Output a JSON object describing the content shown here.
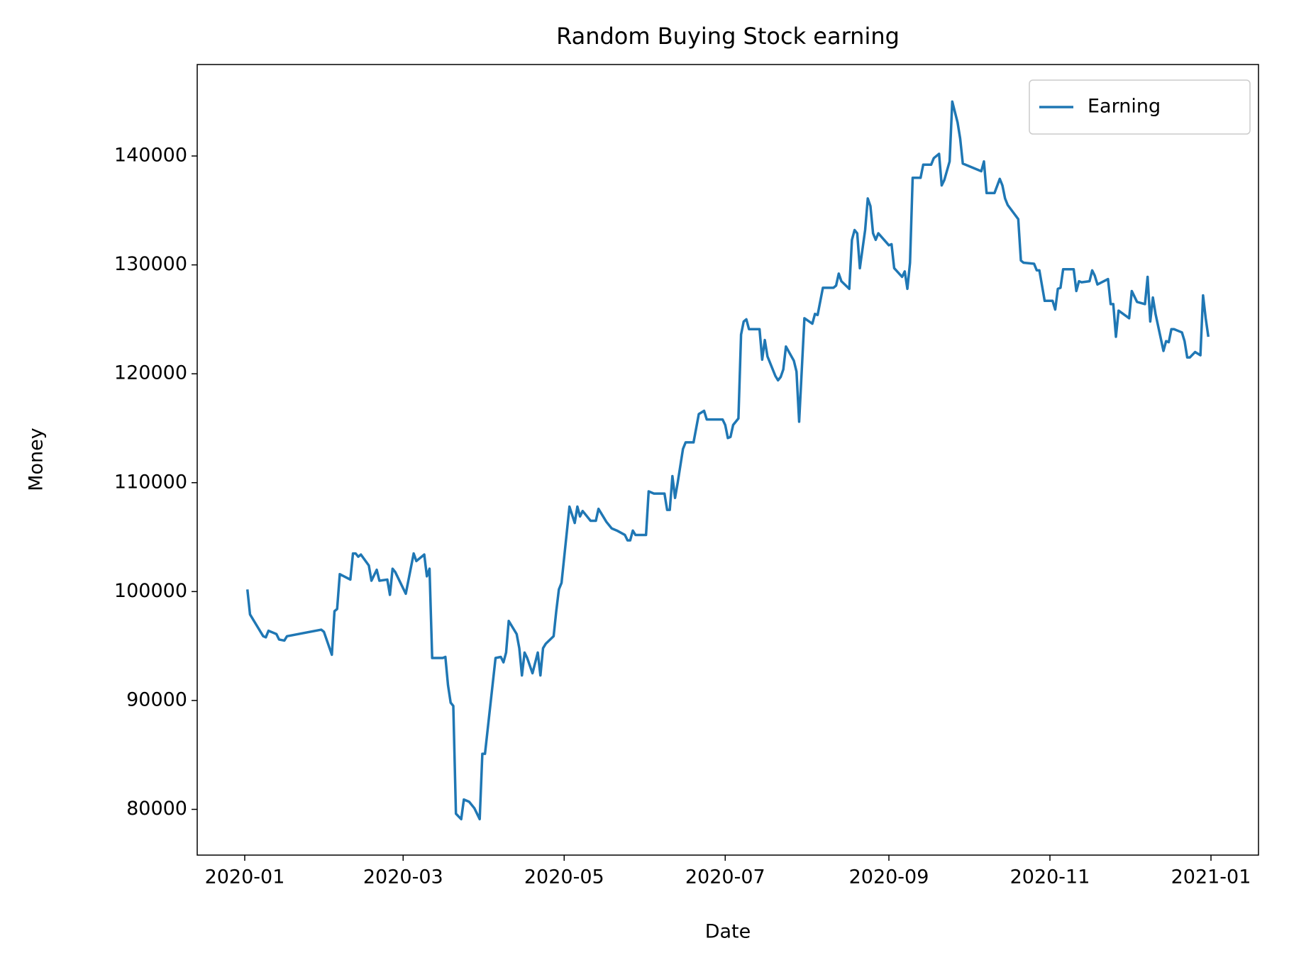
{
  "chart_data": {
    "type": "line",
    "title": "Random Buying Stock earning",
    "xlabel": "Date",
    "ylabel": "Money",
    "x": [
      "2020-01-02",
      "2020-01-03",
      "2020-01-06",
      "2020-01-08",
      "2020-01-09",
      "2020-01-10",
      "2020-01-13",
      "2020-01-14",
      "2020-01-16",
      "2020-01-17",
      "2020-01-30",
      "2020-01-31",
      "2020-02-03",
      "2020-02-04",
      "2020-02-05",
      "2020-02-06",
      "2020-02-10",
      "2020-02-11",
      "2020-02-12",
      "2020-02-13",
      "2020-02-14",
      "2020-02-17",
      "2020-02-18",
      "2020-02-20",
      "2020-02-21",
      "2020-02-24",
      "2020-02-25",
      "2020-02-26",
      "2020-02-27",
      "2020-03-02",
      "2020-03-05",
      "2020-03-06",
      "2020-03-09",
      "2020-03-10",
      "2020-03-11",
      "2020-03-12",
      "2020-03-16",
      "2020-03-17",
      "2020-03-18",
      "2020-03-19",
      "2020-03-20",
      "2020-03-21",
      "2020-03-23",
      "2020-03-24",
      "2020-03-26",
      "2020-03-28",
      "2020-03-30",
      "2020-03-31",
      "2020-04-01",
      "2020-04-05",
      "2020-04-07",
      "2020-04-08",
      "2020-04-09",
      "2020-04-10",
      "2020-04-13",
      "2020-04-14",
      "2020-04-15",
      "2020-04-16",
      "2020-04-17",
      "2020-04-19",
      "2020-04-21",
      "2020-04-22",
      "2020-04-23",
      "2020-04-24",
      "2020-04-27",
      "2020-04-28",
      "2020-04-29",
      "2020-04-30",
      "2020-05-03",
      "2020-05-05",
      "2020-05-06",
      "2020-05-07",
      "2020-05-08",
      "2020-05-11",
      "2020-05-13",
      "2020-05-14",
      "2020-05-17",
      "2020-05-19",
      "2020-05-21",
      "2020-05-24",
      "2020-05-25",
      "2020-05-26",
      "2020-05-27",
      "2020-05-28",
      "2020-06-01",
      "2020-06-02",
      "2020-06-04",
      "2020-06-08",
      "2020-06-09",
      "2020-06-10",
      "2020-06-11",
      "2020-06-12",
      "2020-06-13",
      "2020-06-15",
      "2020-06-16",
      "2020-06-19",
      "2020-06-21",
      "2020-06-23",
      "2020-06-24",
      "2020-06-26",
      "2020-06-30",
      "2020-07-01",
      "2020-07-02",
      "2020-07-03",
      "2020-07-04",
      "2020-07-06",
      "2020-07-07",
      "2020-07-08",
      "2020-07-09",
      "2020-07-10",
      "2020-07-14",
      "2020-07-15",
      "2020-07-16",
      "2020-07-17",
      "2020-07-20",
      "2020-07-21",
      "2020-07-22",
      "2020-07-23",
      "2020-07-24",
      "2020-07-27",
      "2020-07-28",
      "2020-07-29",
      "2020-07-31",
      "2020-08-03",
      "2020-08-04",
      "2020-08-05",
      "2020-08-07",
      "2020-08-11",
      "2020-08-12",
      "2020-08-13",
      "2020-08-14",
      "2020-08-17",
      "2020-08-18",
      "2020-08-19",
      "2020-08-20",
      "2020-08-21",
      "2020-08-23",
      "2020-08-24",
      "2020-08-25",
      "2020-08-26",
      "2020-08-27",
      "2020-08-28",
      "2020-09-01",
      "2020-09-02",
      "2020-09-03",
      "2020-09-06",
      "2020-09-07",
      "2020-09-08",
      "2020-09-09",
      "2020-09-10",
      "2020-09-13",
      "2020-09-14",
      "2020-09-17",
      "2020-09-18",
      "2020-09-20",
      "2020-09-21",
      "2020-09-22",
      "2020-09-24",
      "2020-09-25",
      "2020-09-27",
      "2020-09-28",
      "2020-09-29",
      "2020-09-30",
      "2020-10-06",
      "2020-10-07",
      "2020-10-08",
      "2020-10-11",
      "2020-10-13",
      "2020-10-14",
      "2020-10-15",
      "2020-10-16",
      "2020-10-20",
      "2020-10-21",
      "2020-10-22",
      "2020-10-26",
      "2020-10-27",
      "2020-10-28",
      "2020-10-30",
      "2020-11-02",
      "2020-11-03",
      "2020-11-04",
      "2020-11-05",
      "2020-11-06",
      "2020-11-10",
      "2020-11-11",
      "2020-11-12",
      "2020-11-13",
      "2020-11-16",
      "2020-11-17",
      "2020-11-18",
      "2020-11-19",
      "2020-11-23",
      "2020-11-24",
      "2020-11-25",
      "2020-11-26",
      "2020-11-27",
      "2020-12-01",
      "2020-12-02",
      "2020-12-04",
      "2020-12-07",
      "2020-12-08",
      "2020-12-09",
      "2020-12-10",
      "2020-12-11",
      "2020-12-14",
      "2020-12-15",
      "2020-12-16",
      "2020-12-17",
      "2020-12-18",
      "2020-12-21",
      "2020-12-22",
      "2020-12-23",
      "2020-12-24",
      "2020-12-26",
      "2020-12-28",
      "2020-12-29",
      "2020-12-30",
      "2020-12-31"
    ],
    "series": [
      {
        "name": "Earning",
        "color": "#1f77b4",
        "values": [
          100200,
          97900,
          96700,
          95900,
          95800,
          96400,
          96100,
          95600,
          95500,
          95900,
          96500,
          96300,
          94200,
          98200,
          98400,
          101600,
          101100,
          103500,
          103500,
          103200,
          103400,
          102400,
          101000,
          102000,
          101000,
          101100,
          99700,
          102100,
          101800,
          99800,
          103500,
          102800,
          103400,
          101400,
          102100,
          93900,
          93900,
          94000,
          91400,
          89800,
          89500,
          79600,
          79100,
          80900,
          80700,
          80100,
          79100,
          85100,
          85100,
          93900,
          94000,
          93500,
          94400,
          97300,
          96100,
          94800,
          92300,
          94400,
          93900,
          92500,
          94400,
          92300,
          94800,
          95200,
          95900,
          98200,
          100200,
          100800,
          107800,
          106300,
          107800,
          106900,
          107400,
          106500,
          106500,
          107600,
          106400,
          105800,
          105600,
          105200,
          104700,
          104700,
          105600,
          105200,
          105200,
          109200,
          109000,
          109000,
          107500,
          107500,
          110600,
          108600,
          110000,
          113100,
          113700,
          113700,
          116300,
          116600,
          115800,
          115800,
          115800,
          115300,
          114100,
          114200,
          115300,
          115900,
          123600,
          124800,
          125000,
          124100,
          124100,
          121300,
          123100,
          121600,
          119800,
          119400,
          119700,
          120400,
          122500,
          121200,
          120200,
          115600,
          125100,
          124600,
          125500,
          125400,
          127900,
          127900,
          128100,
          129200,
          128500,
          127800,
          132300,
          133200,
          132900,
          129700,
          133200,
          136100,
          135400,
          132900,
          132300,
          132900,
          131800,
          131900,
          129700,
          128900,
          129400,
          127800,
          130200,
          138000,
          138000,
          139200,
          139200,
          139800,
          140200,
          137300,
          137800,
          139500,
          145000,
          143100,
          141600,
          139300,
          139200,
          138600,
          139500,
          136600,
          136600,
          137900,
          137300,
          136100,
          135500,
          134200,
          130400,
          130200,
          130100,
          129500,
          129500,
          126700,
          126700,
          125900,
          127800,
          127900,
          129600,
          129600,
          127600,
          128500,
          128400,
          128500,
          129500,
          129000,
          128200,
          128700,
          126400,
          126400,
          123400,
          125800,
          125100,
          127600,
          126600,
          126400,
          128900,
          124800,
          127000,
          125500,
          122100,
          123000,
          122900,
          124100,
          124100,
          123800,
          123000,
          121500,
          121500,
          122000,
          121700,
          127200,
          125100,
          123400
        ]
      }
    ],
    "xlim": [
      "2019-12-14",
      "2021-01-19"
    ],
    "xticks": [
      {
        "value": "2020-01-01",
        "label": "2020-01"
      },
      {
        "value": "2020-03-01",
        "label": "2020-03"
      },
      {
        "value": "2020-05-01",
        "label": "2020-05"
      },
      {
        "value": "2020-07-01",
        "label": "2020-07"
      },
      {
        "value": "2020-09-01",
        "label": "2020-09"
      },
      {
        "value": "2020-11-01",
        "label": "2020-11"
      },
      {
        "value": "2021-01-01",
        "label": "2021-01"
      }
    ],
    "ylim": [
      75800,
      148400
    ],
    "yticks": [
      80000,
      90000,
      100000,
      110000,
      120000,
      130000,
      140000
    ],
    "grid": false,
    "legend": "upper right"
  }
}
